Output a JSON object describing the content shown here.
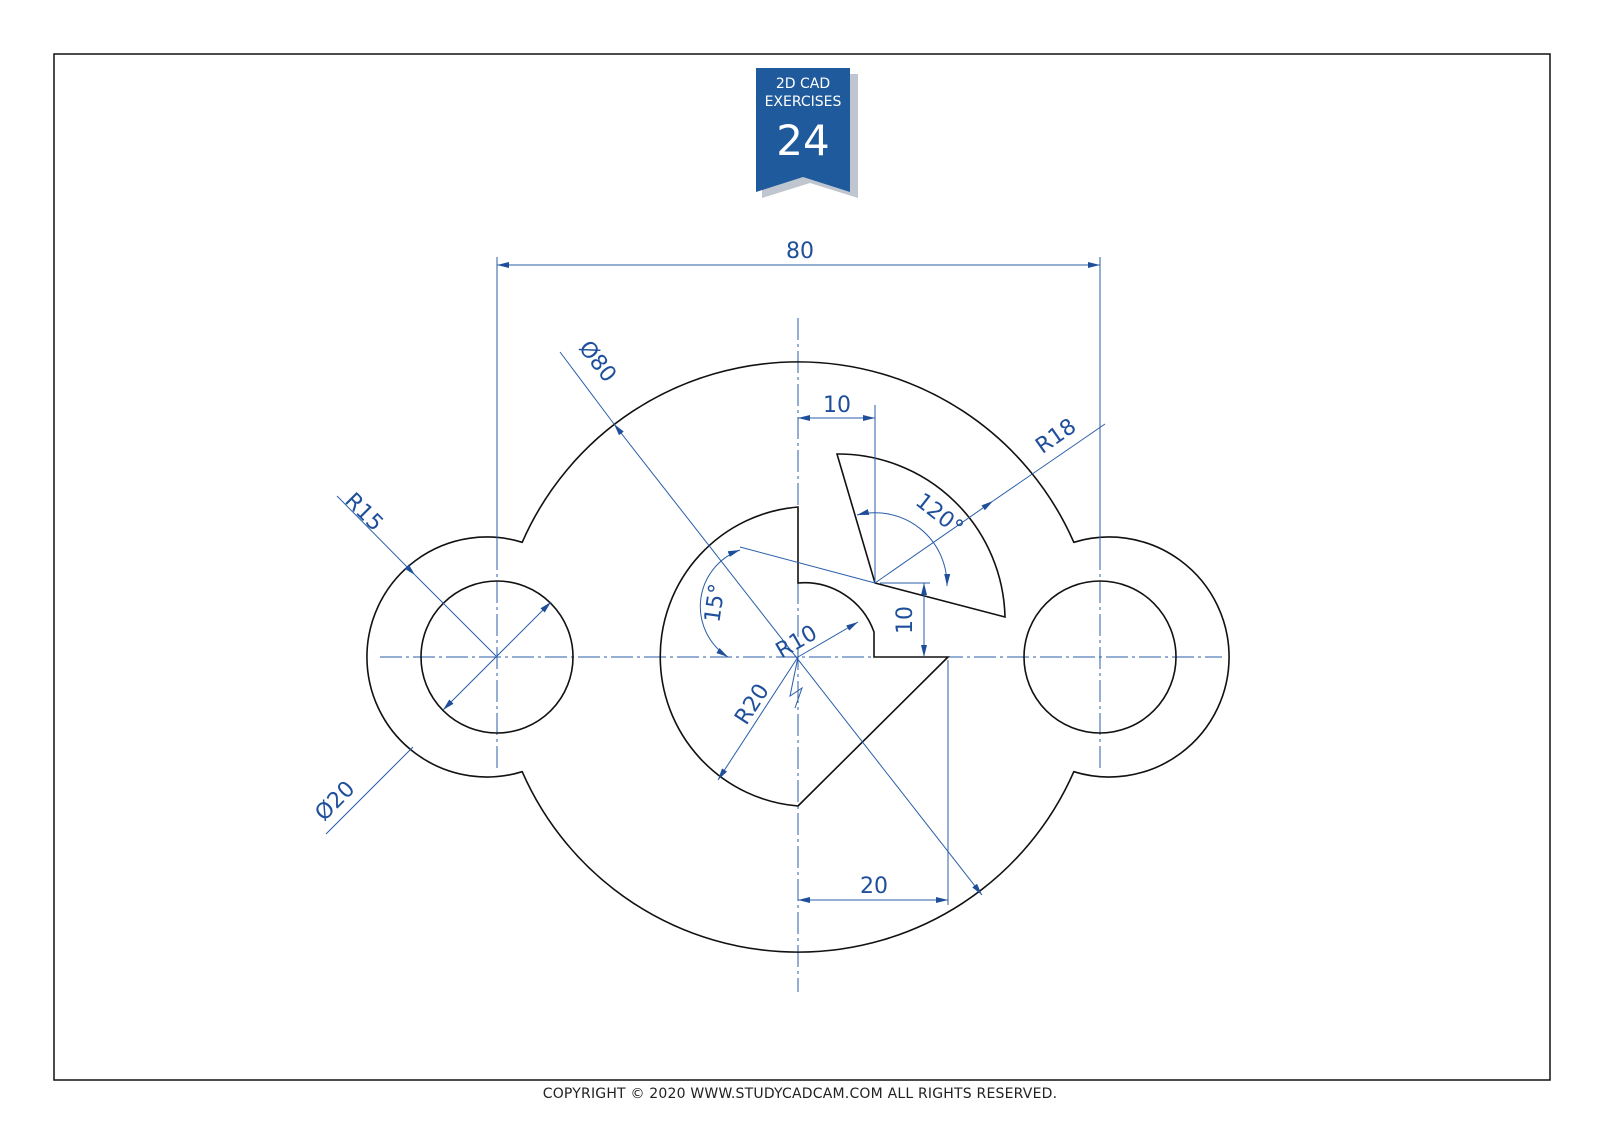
{
  "badge": {
    "line1": "2D CAD",
    "line2": "EXERCISES",
    "number": "24"
  },
  "dimensions": {
    "overall_width": "80",
    "big_diameter": "Ø80",
    "sector_offset": "10",
    "sector_radius": "R18",
    "sector_angle": "120°",
    "lug_radius": "R15",
    "hole_diameter": "Ø20",
    "tilt_angle": "15°",
    "inner_radius": "R10",
    "center_radius": "R20",
    "notch_height": "10",
    "notch_width": "20"
  },
  "footer": {
    "copyright": "COPYRIGHT © 2020 WWW.STUDYCADCAM.COM ALL RIGHTS RESERVED."
  },
  "colors": {
    "dimension": "#1f4f9a",
    "badge": "#1f5a9c",
    "geometry": "#111111"
  }
}
